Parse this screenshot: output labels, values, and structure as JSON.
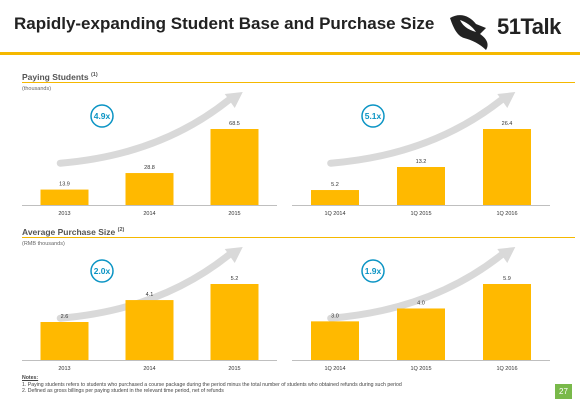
{
  "slide": {
    "title": "Rapidly-expanding Student Base and Purchase Size",
    "logo_text": "51Talk",
    "page_number": "27",
    "accent_color": "#f5b800",
    "bar_color": "#ffb900",
    "multiplier_color": "#0b94c4"
  },
  "sections": [
    {
      "title": "Paying Students",
      "superscript": "(1)",
      "unit": "(thousands)"
    },
    {
      "title": "Average Purchase Size",
      "superscript": "(2)",
      "unit": "(RMB thousands)"
    }
  ],
  "notes": {
    "heading": "Notes:",
    "items": [
      "1. Paying students refers to students who purchased a course package during the period minus the total number of students who obtained refunds during such period",
      "2. Defined as gross billings per paying student in the relevant time period, net of refunds"
    ]
  },
  "chart_data": [
    {
      "type": "bar",
      "title": "Paying Students",
      "categories": [
        "2013",
        "2014",
        "2015"
      ],
      "values": [
        13.9,
        28.8,
        68.5
      ],
      "data_labels": [
        "13.9",
        "28.8",
        "68.5"
      ],
      "multiplier": "4.9x",
      "ylim": [
        0,
        68.5
      ]
    },
    {
      "type": "bar",
      "title": "Paying Students",
      "categories": [
        "1Q 2014",
        "1Q 2015",
        "1Q 2016"
      ],
      "values": [
        5.2,
        13.2,
        26.4
      ],
      "data_labels": [
        "5.2",
        "13.2",
        "26.4"
      ],
      "multiplier": "5.1x",
      "ylim": [
        0,
        26.4
      ]
    },
    {
      "type": "bar",
      "title": "Average Purchase Size",
      "categories": [
        "2013",
        "2014",
        "2015"
      ],
      "values": [
        2.6,
        4.1,
        5.2
      ],
      "data_labels": [
        "2.6",
        "4.1",
        "5.2"
      ],
      "multiplier": "2.0x",
      "ylim": [
        0,
        5.2
      ]
    },
    {
      "type": "bar",
      "title": "Average Purchase Size",
      "categories": [
        "1Q 2014",
        "1Q 2015",
        "1Q 2016"
      ],
      "values": [
        3.0,
        4.0,
        5.9
      ],
      "data_labels": [
        "3.0",
        "4.0",
        "5.9"
      ],
      "multiplier": "1.9x",
      "ylim": [
        0,
        5.9
      ]
    }
  ]
}
